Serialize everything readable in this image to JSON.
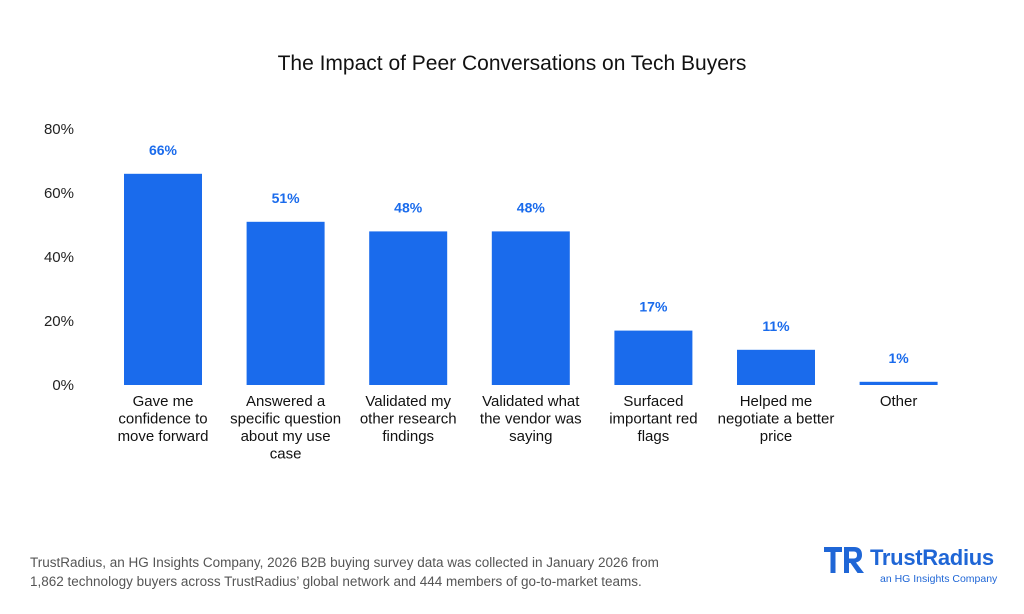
{
  "chart_data": {
    "type": "bar",
    "title": "The Impact of Peer Conversations on Tech Buyers",
    "xlabel": "",
    "ylabel": "",
    "ylim": [
      0,
      80
    ],
    "yticks": [
      0,
      20,
      40,
      60,
      80
    ],
    "ytick_suffix": "%",
    "grid": false,
    "legend": "none",
    "categories": [
      "Gave me confidence to move forward",
      "Answered a specific question about my use case",
      "Validated my other research findings",
      "Validated what the vendor was saying",
      "Surfaced important red flags",
      "Helped me negotiate a better price",
      "Other"
    ],
    "category_lines": [
      [
        "Gave me",
        "confidence to",
        "move forward"
      ],
      [
        "Answered a",
        "specific question",
        "about my use",
        "case"
      ],
      [
        "Validated my",
        "other research",
        "findings"
      ],
      [
        "Validated what",
        "the vendor was",
        "saying"
      ],
      [
        "Surfaced",
        "important red",
        "flags"
      ],
      [
        "Helped me",
        "negotiate a better",
        "price"
      ],
      [
        "Other"
      ]
    ],
    "values": [
      66,
      51,
      48,
      48,
      17,
      11,
      1
    ],
    "data_labels": [
      "66%",
      "51%",
      "48%",
      "48%",
      "17%",
      "11%",
      "1%"
    ],
    "bar_color": "#1a6bec",
    "label_color": "#1a6bec"
  },
  "footnote": {
    "line1": "TrustRadius, an HG Insights Company, 2026 B2B buying survey data was collected in January 2026 from",
    "line2": "1,862 technology buyers across TrustRadius’ global network and 444 members of go-to-market teams."
  },
  "logo": {
    "name": "TrustRadius",
    "tagline": "an HG Insights Company",
    "color": "#1f66d6"
  }
}
